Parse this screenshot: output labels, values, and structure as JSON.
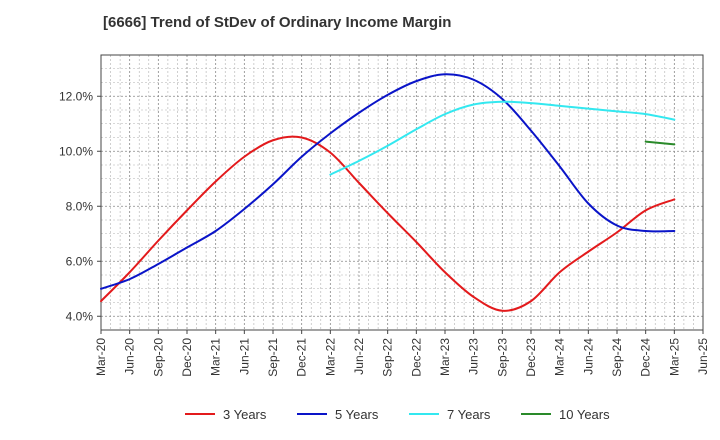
{
  "chart_data": {
    "type": "line",
    "title": "[6666]  Trend of StDev of Ordinary Income Margin",
    "xlabel": "",
    "ylabel": "",
    "x_ticks": [
      "Mar-20",
      "Jun-20",
      "Sep-20",
      "Dec-20",
      "Mar-21",
      "Jun-21",
      "Sep-21",
      "Dec-21",
      "Mar-22",
      "Jun-22",
      "Sep-22",
      "Dec-22",
      "Mar-23",
      "Jun-23",
      "Sep-23",
      "Dec-23",
      "Mar-24",
      "Jun-24",
      "Sep-24",
      "Dec-24",
      "Mar-25",
      "Jun-25"
    ],
    "y_ticks": [
      "4.0%",
      "6.0%",
      "8.0%",
      "10.0%",
      "12.0%"
    ],
    "y_tick_values": [
      4,
      6,
      8,
      10,
      12
    ],
    "ylim": [
      3.5,
      13.5
    ],
    "grid": true,
    "legend_position": "bottom",
    "series": [
      {
        "name": "3 Years",
        "color": "#e31a1c",
        "points": [
          [
            "Mar-20",
            4.55
          ],
          [
            "Jun-20",
            5.6
          ],
          [
            "Sep-20",
            6.75
          ],
          [
            "Dec-20",
            7.85
          ],
          [
            "Mar-21",
            8.9
          ],
          [
            "Jun-21",
            9.8
          ],
          [
            "Sep-21",
            10.4
          ],
          [
            "Dec-21",
            10.5
          ],
          [
            "Mar-22",
            9.95
          ],
          [
            "Jun-22",
            8.85
          ],
          [
            "Sep-22",
            7.75
          ],
          [
            "Dec-22",
            6.7
          ],
          [
            "Mar-23",
            5.6
          ],
          [
            "Jun-23",
            4.7
          ],
          [
            "Sep-23",
            4.2
          ],
          [
            "Dec-23",
            4.55
          ],
          [
            "Mar-24",
            5.6
          ],
          [
            "Jun-24",
            6.35
          ],
          [
            "Sep-24",
            7.05
          ],
          [
            "Dec-24",
            7.85
          ],
          [
            "Mar-25",
            8.25
          ]
        ]
      },
      {
        "name": "5 Years",
        "color": "#0a14c8",
        "points": [
          [
            "Mar-20",
            5.0
          ],
          [
            "Jun-20",
            5.35
          ],
          [
            "Sep-20",
            5.9
          ],
          [
            "Dec-20",
            6.5
          ],
          [
            "Mar-21",
            7.1
          ],
          [
            "Jun-21",
            7.9
          ],
          [
            "Sep-21",
            8.8
          ],
          [
            "Dec-21",
            9.8
          ],
          [
            "Mar-22",
            10.65
          ],
          [
            "Jun-22",
            11.4
          ],
          [
            "Sep-22",
            12.05
          ],
          [
            "Dec-22",
            12.55
          ],
          [
            "Mar-23",
            12.8
          ],
          [
            "Jun-23",
            12.6
          ],
          [
            "Sep-23",
            11.9
          ],
          [
            "Dec-23",
            10.75
          ],
          [
            "Mar-24",
            9.45
          ],
          [
            "Jun-24",
            8.1
          ],
          [
            "Sep-24",
            7.3
          ],
          [
            "Dec-24",
            7.1
          ],
          [
            "Mar-25",
            7.1
          ]
        ]
      },
      {
        "name": "7 Years",
        "color": "#33e8f0",
        "points": [
          [
            "Mar-22",
            9.15
          ],
          [
            "Jun-22",
            9.65
          ],
          [
            "Sep-22",
            10.2
          ],
          [
            "Dec-22",
            10.8
          ],
          [
            "Mar-23",
            11.35
          ],
          [
            "Jun-23",
            11.7
          ],
          [
            "Sep-23",
            11.8
          ],
          [
            "Dec-23",
            11.75
          ],
          [
            "Mar-24",
            11.65
          ],
          [
            "Jun-24",
            11.55
          ],
          [
            "Sep-24",
            11.45
          ],
          [
            "Dec-24",
            11.35
          ],
          [
            "Mar-25",
            11.15
          ]
        ]
      },
      {
        "name": "10 Years",
        "color": "#2a8a2a",
        "points": [
          [
            "Dec-24",
            10.35
          ],
          [
            "Mar-25",
            10.25
          ]
        ]
      }
    ]
  }
}
